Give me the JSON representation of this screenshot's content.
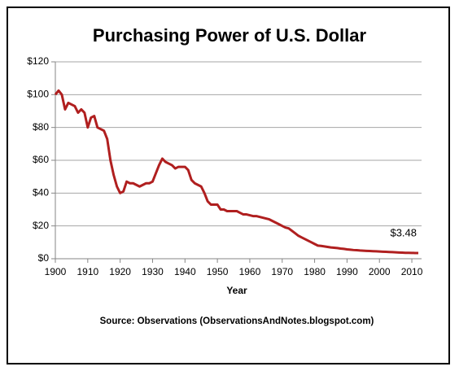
{
  "chart_data": {
    "type": "line",
    "title": "Purchasing Power of U.S. Dollar",
    "x_label": "Year",
    "source": "Source: Observations  (ObservationsAndNotes.blogspot.com)",
    "x": [
      1900,
      1901,
      1902,
      1903,
      1904,
      1905,
      1906,
      1907,
      1908,
      1909,
      1910,
      1911,
      1912,
      1913,
      1914,
      1915,
      1916,
      1917,
      1918,
      1919,
      1920,
      1921,
      1922,
      1923,
      1924,
      1925,
      1926,
      1927,
      1928,
      1929,
      1930,
      1931,
      1932,
      1933,
      1934,
      1935,
      1936,
      1937,
      1938,
      1939,
      1940,
      1941,
      1942,
      1943,
      1944,
      1945,
      1946,
      1947,
      1948,
      1949,
      1950,
      1951,
      1952,
      1953,
      1954,
      1955,
      1956,
      1957,
      1958,
      1959,
      1960,
      1961,
      1962,
      1963,
      1964,
      1965,
      1966,
      1967,
      1968,
      1969,
      1970,
      1971,
      1972,
      1973,
      1974,
      1975,
      1976,
      1977,
      1978,
      1979,
      1980,
      1981,
      1982,
      1983,
      1984,
      1985,
      1986,
      1987,
      1988,
      1989,
      1990,
      1991,
      1992,
      1993,
      1994,
      1995,
      1996,
      1997,
      1998,
      1999,
      2000,
      2001,
      2002,
      2003,
      2004,
      2005,
      2006,
      2007,
      2008,
      2009,
      2010,
      2011,
      2012
    ],
    "series": [
      {
        "name": "Purchasing Power",
        "color": "#b01f1f",
        "values": [
          100,
          102.5,
          100,
          91,
          95,
          94,
          93,
          89,
          91,
          89,
          80,
          86,
          87,
          80,
          79,
          78,
          73,
          60,
          51,
          44,
          40,
          41,
          47,
          46,
          46,
          45,
          44,
          45,
          46,
          46,
          47,
          52,
          57,
          61,
          59,
          58,
          57,
          55,
          56,
          56,
          56,
          54,
          48,
          46,
          45,
          44,
          40,
          35,
          33,
          33,
          33,
          30,
          30,
          29,
          29,
          29,
          29,
          28,
          27,
          27,
          26.5,
          26,
          26,
          25.5,
          25,
          24.5,
          24,
          23,
          22,
          21,
          20,
          19,
          18.5,
          17,
          15.5,
          14,
          13,
          12,
          11,
          10,
          9,
          8,
          7.8,
          7.5,
          7.2,
          6.9,
          6.7,
          6.5,
          6.2,
          6,
          5.7,
          5.5,
          5.3,
          5.2,
          5,
          4.9,
          4.8,
          4.7,
          4.6,
          4.5,
          4.4,
          4.3,
          4.2,
          4.1,
          4,
          3.9,
          3.8,
          3.7,
          3.6,
          3.6,
          3.55,
          3.5,
          3.48
        ]
      }
    ],
    "annotations": [
      {
        "text": "$3.48",
        "x": 2012,
        "y": 3.48
      }
    ],
    "xlim": [
      1900,
      2013
    ],
    "xticks": [
      1900,
      1910,
      1920,
      1930,
      1940,
      1950,
      1960,
      1970,
      1980,
      1990,
      2000,
      2010
    ],
    "ylim": [
      0,
      120
    ],
    "yticks": [
      {
        "value": 0,
        "label": "$0"
      },
      {
        "value": 20,
        "label": "$20"
      },
      {
        "value": 40,
        "label": "$40"
      },
      {
        "value": 60,
        "label": "$60"
      },
      {
        "value": 80,
        "label": "$80"
      },
      {
        "value": 100,
        "label": "$100"
      },
      {
        "value": 120,
        "label": "$120"
      }
    ],
    "grid": true
  }
}
